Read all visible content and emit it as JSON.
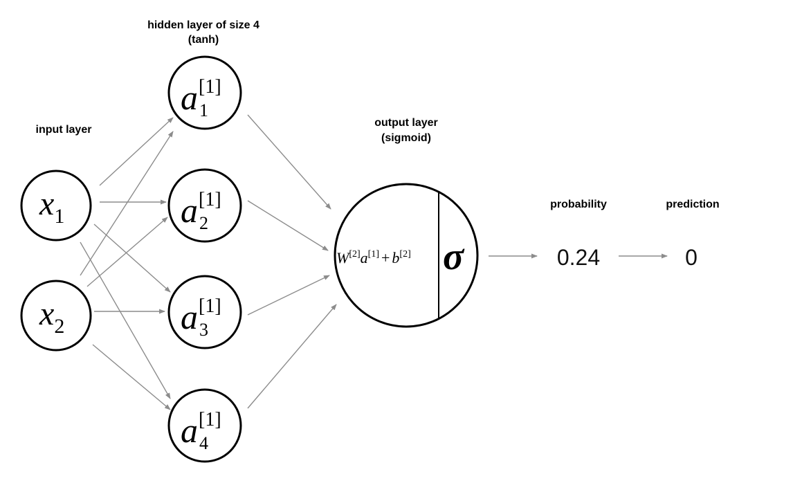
{
  "labels": {
    "hidden_title": "hidden layer of size 4",
    "hidden_activation": "(tanh)",
    "input_title": "input layer",
    "output_title": "output layer",
    "output_activation": "(sigmoid)",
    "probability_title": "probability",
    "prediction_title": "prediction"
  },
  "inputs": [
    {
      "symbol": "x",
      "subscript": "1"
    },
    {
      "symbol": "x",
      "subscript": "2"
    }
  ],
  "hidden": [
    {
      "symbol": "a",
      "superscript": "[1]",
      "subscript": "1"
    },
    {
      "symbol": "a",
      "superscript": "[1]",
      "subscript": "2"
    },
    {
      "symbol": "a",
      "superscript": "[1]",
      "subscript": "3"
    },
    {
      "symbol": "a",
      "superscript": "[1]",
      "subscript": "4"
    }
  ],
  "output": {
    "w": "W",
    "w_sup": "[2]",
    "a": "a",
    "a_sup": "[1]",
    "plus": "+",
    "b": "b",
    "b_sup": "[2]",
    "sigma": "σ"
  },
  "probability": "0.24",
  "prediction": "0",
  "edge_color": "#8c8c8c"
}
